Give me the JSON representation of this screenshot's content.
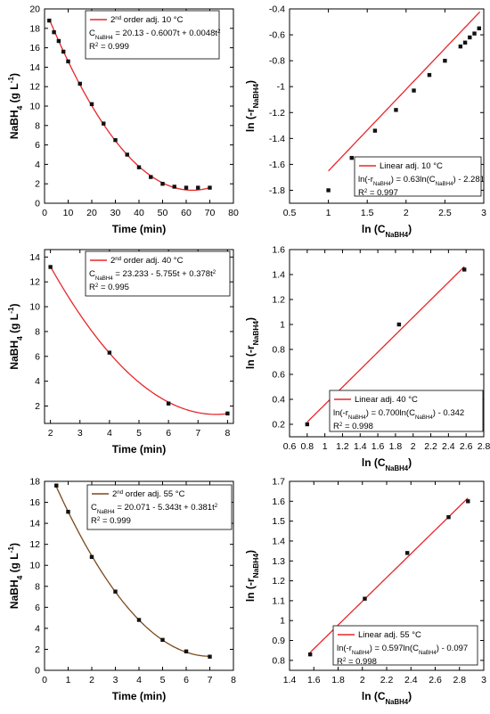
{
  "chart_data": [
    {
      "type": "scatter",
      "xlabel": "Time (min)",
      "ylabel": "NaBH4 (g L-1)",
      "xlim": [
        0,
        80
      ],
      "ylim": [
        0,
        20
      ],
      "xticks": [
        0,
        10,
        20,
        30,
        40,
        50,
        60,
        70,
        80
      ],
      "yticks": [
        0,
        2,
        4,
        6,
        8,
        10,
        12,
        14,
        16,
        18,
        20
      ],
      "series": [
        {
          "kind": "points",
          "x": [
            2,
            4,
            6,
            8,
            10,
            15,
            20,
            25,
            30,
            35,
            40,
            45,
            50,
            55,
            60,
            65,
            70
          ],
          "y": [
            18.8,
            17.6,
            16.7,
            15.6,
            14.6,
            12.3,
            10.2,
            8.2,
            6.5,
            5.0,
            3.7,
            2.7,
            2.0,
            1.7,
            1.6,
            1.6,
            1.6
          ]
        },
        {
          "kind": "curve",
          "name": "2nd order adj. 10 °C",
          "color": "#e8262a",
          "poly": [
            20.13,
            -0.6007,
            0.0048
          ],
          "range": [
            2,
            70
          ]
        }
      ],
      "legend": {
        "line1": "2nd order adj. 10 °C",
        "line2": "C_NaBH4 = 20.13 - 0.6007t + 0.0048t²",
        "line3": "R² = 0.999"
      }
    },
    {
      "type": "scatter",
      "xlabel": "ln (C_NaBH4)",
      "ylabel": "ln (-r_NaBH4)",
      "xlim": [
        0.5,
        3.0
      ],
      "ylim": [
        -1.9,
        -0.4
      ],
      "xticks": [
        0.5,
        1.0,
        1.5,
        2.0,
        2.5,
        3.0
      ],
      "yticks": [
        -1.8,
        -1.6,
        -1.4,
        -1.2,
        -1.0,
        -0.8,
        -0.6,
        -0.4
      ],
      "series": [
        {
          "kind": "points",
          "x": [
            1.0,
            1.3,
            1.6,
            1.87,
            2.1,
            2.3,
            2.5,
            2.7,
            2.76,
            2.82,
            2.88,
            2.94
          ],
          "y": [
            -1.8,
            -1.55,
            -1.34,
            -1.18,
            -1.03,
            -0.91,
            -0.8,
            -0.69,
            -0.66,
            -0.62,
            -0.59,
            -0.55
          ]
        },
        {
          "kind": "curve",
          "name": "Linear adj. 10 °C",
          "color": "#e8262a",
          "poly": [
            -2.281,
            0.63
          ],
          "range": [
            1.0,
            2.95
          ]
        }
      ],
      "legend": {
        "line1": "Linear adj. 10 °C",
        "line2": "ln(-r_NaBH4) = 0.63ln(C_NaBH4) - 2.281",
        "line3": "R² = 0.997"
      }
    },
    {
      "type": "scatter",
      "xlabel": "Time (min)",
      "ylabel": "NaBH4 (g L-1)",
      "xlim": [
        1.8,
        8.2
      ],
      "ylim": [
        0.6,
        14.6
      ],
      "xticks": [
        2,
        3,
        4,
        5,
        6,
        7,
        8
      ],
      "yticks": [
        2,
        4,
        6,
        8,
        10,
        12,
        14
      ],
      "series": [
        {
          "kind": "points",
          "x": [
            2,
            4,
            6,
            8
          ],
          "y": [
            13.2,
            6.3,
            2.2,
            1.4
          ]
        },
        {
          "kind": "curve",
          "name": "2nd order adj. 40 °C",
          "color": "#e8262a",
          "poly": [
            23.233,
            -5.755,
            0.378
          ],
          "range": [
            2,
            8
          ]
        }
      ],
      "legend": {
        "line1": "2nd order adj. 40 °C",
        "line2": "C_NaBH4 = 23.233 - 5.755t + 0.378t²",
        "line3": "R² = 0.995"
      }
    },
    {
      "type": "scatter",
      "xlabel": "ln (C_NaBH4)",
      "ylabel": "ln (-r_NaBH4)",
      "xlim": [
        0.6,
        2.8
      ],
      "ylim": [
        0.1,
        1.6
      ],
      "xticks": [
        0.6,
        0.8,
        1.0,
        1.2,
        1.4,
        1.6,
        1.8,
        2.0,
        2.2,
        2.4,
        2.6,
        2.8
      ],
      "yticks": [
        0.2,
        0.4,
        0.6,
        0.8,
        1.0,
        1.2,
        1.4,
        1.6
      ],
      "series": [
        {
          "kind": "points",
          "x": [
            0.8,
            1.84,
            2.58
          ],
          "y": [
            0.2,
            1.0,
            1.44
          ]
        },
        {
          "kind": "curve",
          "name": "Linear adj. 40 °C",
          "color": "#e8262a",
          "poly": [
            -0.342,
            0.7
          ],
          "range": [
            0.8,
            2.58
          ]
        }
      ],
      "legend": {
        "line1": "Linear adj. 40 °C",
        "line2": "ln(-r_NaBH4) = 0.700ln(C_NaBH4) - 0.342",
        "line3": "R² = 0.998"
      }
    },
    {
      "type": "scatter",
      "xlabel": "Time (min)",
      "ylabel": "NaBH4 (g L-1)",
      "xlim": [
        0,
        8
      ],
      "ylim": [
        0,
        18
      ],
      "xticks": [
        0,
        1,
        2,
        3,
        4,
        5,
        6,
        7,
        8
      ],
      "yticks": [
        0,
        2,
        4,
        6,
        8,
        10,
        12,
        14,
        16,
        18
      ],
      "series": [
        {
          "kind": "points",
          "x": [
            0.5,
            1,
            2,
            3,
            4,
            5,
            6,
            7
          ],
          "y": [
            17.6,
            15.1,
            10.8,
            7.5,
            4.8,
            2.9,
            1.8,
            1.3
          ]
        },
        {
          "kind": "curve",
          "name": "2nd order adj. 55 °C",
          "color": "#7a4a1c",
          "poly": [
            20.071,
            -5.343,
            0.381
          ],
          "range": [
            0.5,
            7
          ]
        }
      ],
      "legend": {
        "line1": "2nd order adj. 55 °C",
        "line2": "C_NaBH4 = 20.071 - 5.343t + 0.381t²",
        "line3": "R² = 0.999"
      }
    },
    {
      "type": "scatter",
      "xlabel": "ln (C_NaBH4)",
      "ylabel": "ln (-r_NaBH4)",
      "xlim": [
        1.4,
        3.0
      ],
      "ylim": [
        0.75,
        1.7
      ],
      "xticks": [
        1.4,
        1.6,
        1.8,
        2.0,
        2.2,
        2.4,
        2.6,
        2.8,
        3.0
      ],
      "yticks": [
        0.8,
        0.9,
        1.0,
        1.1,
        1.2,
        1.3,
        1.4,
        1.5,
        1.6,
        1.7
      ],
      "series": [
        {
          "kind": "points",
          "x": [
            1.57,
            2.02,
            2.37,
            2.71,
            2.87
          ],
          "y": [
            0.83,
            1.11,
            1.34,
            1.52,
            1.6
          ]
        },
        {
          "kind": "curve",
          "name": "Linear adj. 55 °C",
          "color": "#e8262a",
          "poly": [
            -0.097,
            0.597
          ],
          "range": [
            1.57,
            2.87
          ]
        }
      ],
      "legend": {
        "line1": "Linear adj. 55 °C",
        "line2": "ln(-r_NaBH4) = 0.597ln(C_NaBH4) - 0.097",
        "line3": "R² = 0.998"
      }
    }
  ]
}
